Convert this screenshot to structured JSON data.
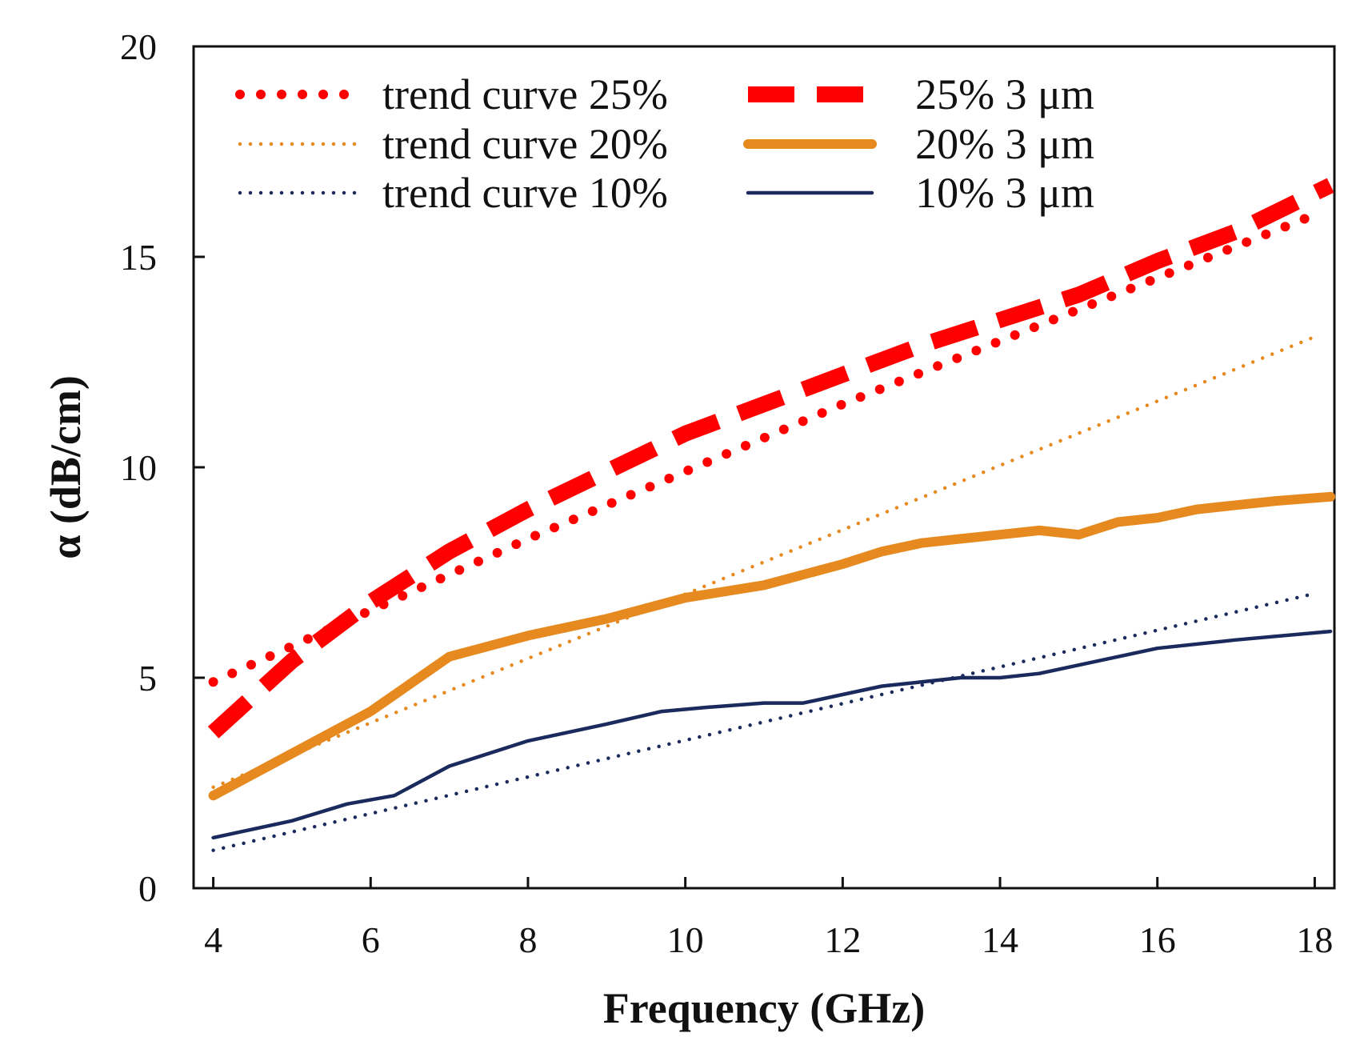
{
  "chart_data": {
    "type": "line",
    "title": "",
    "xlabel": "Frequency (GHz)",
    "ylabel": "α (dB/cm)",
    "xlim": [
      3.75,
      18.25
    ],
    "ylim": [
      0,
      20
    ],
    "xticks": [
      4,
      6,
      8,
      10,
      12,
      14,
      16,
      18
    ],
    "yticks": [
      0,
      5,
      10,
      15,
      20
    ],
    "legend_position": "top-left",
    "grid": false,
    "series": [
      {
        "name": "trend curve 25%",
        "color": "#ff0000",
        "style": "dotted-thick",
        "x": [
          4,
          6,
          8,
          10,
          12,
          14,
          16,
          18
        ],
        "y": [
          4.9,
          6.6,
          8.3,
          9.9,
          11.5,
          13.0,
          14.5,
          16.0
        ]
      },
      {
        "name": "trend curve 20%",
        "color": "#e68a1f",
        "style": "dotted",
        "x": [
          4,
          18
        ],
        "y": [
          2.4,
          13.1
        ]
      },
      {
        "name": "trend curve 10%",
        "color": "#1a2a5c",
        "style": "dotted",
        "x": [
          4,
          18
        ],
        "y": [
          0.9,
          7.0
        ]
      },
      {
        "name": "25% 3 μm",
        "color": "#ff0000",
        "style": "dashed-thick",
        "x": [
          4,
          5,
          6,
          7,
          8,
          9,
          10,
          11,
          12,
          13,
          14,
          15,
          16,
          17,
          18.2
        ],
        "y": [
          3.7,
          5.4,
          6.8,
          8.0,
          9.0,
          9.9,
          10.8,
          11.5,
          12.2,
          12.9,
          13.5,
          14.1,
          14.9,
          15.6,
          16.7
        ]
      },
      {
        "name": "20% 3 μm",
        "color": "#e68a1f",
        "style": "solid-thick",
        "x": [
          4,
          5,
          6,
          7,
          8,
          9,
          10,
          11,
          12,
          12.5,
          13,
          13.5,
          14,
          14.5,
          15,
          15.5,
          16,
          16.5,
          17,
          17.5,
          18.2
        ],
        "y": [
          2.2,
          3.2,
          4.2,
          5.5,
          6.0,
          6.4,
          6.9,
          7.2,
          7.7,
          8.0,
          8.2,
          8.3,
          8.4,
          8.5,
          8.4,
          8.7,
          8.8,
          9.0,
          9.1,
          9.2,
          9.3
        ]
      },
      {
        "name": "10% 3 μm",
        "color": "#1a2a5c",
        "style": "solid-thin",
        "x": [
          4,
          5,
          5.7,
          6.3,
          7,
          8,
          9,
          9.7,
          10.3,
          11,
          11.5,
          12,
          12.5,
          13,
          13.5,
          14,
          14.5,
          15,
          15.5,
          16,
          17,
          18.2
        ],
        "y": [
          1.2,
          1.6,
          2.0,
          2.2,
          2.9,
          3.5,
          3.9,
          4.2,
          4.3,
          4.4,
          4.4,
          4.6,
          4.8,
          4.9,
          5.0,
          5.0,
          5.1,
          5.3,
          5.5,
          5.7,
          5.9,
          6.1
        ]
      }
    ]
  }
}
